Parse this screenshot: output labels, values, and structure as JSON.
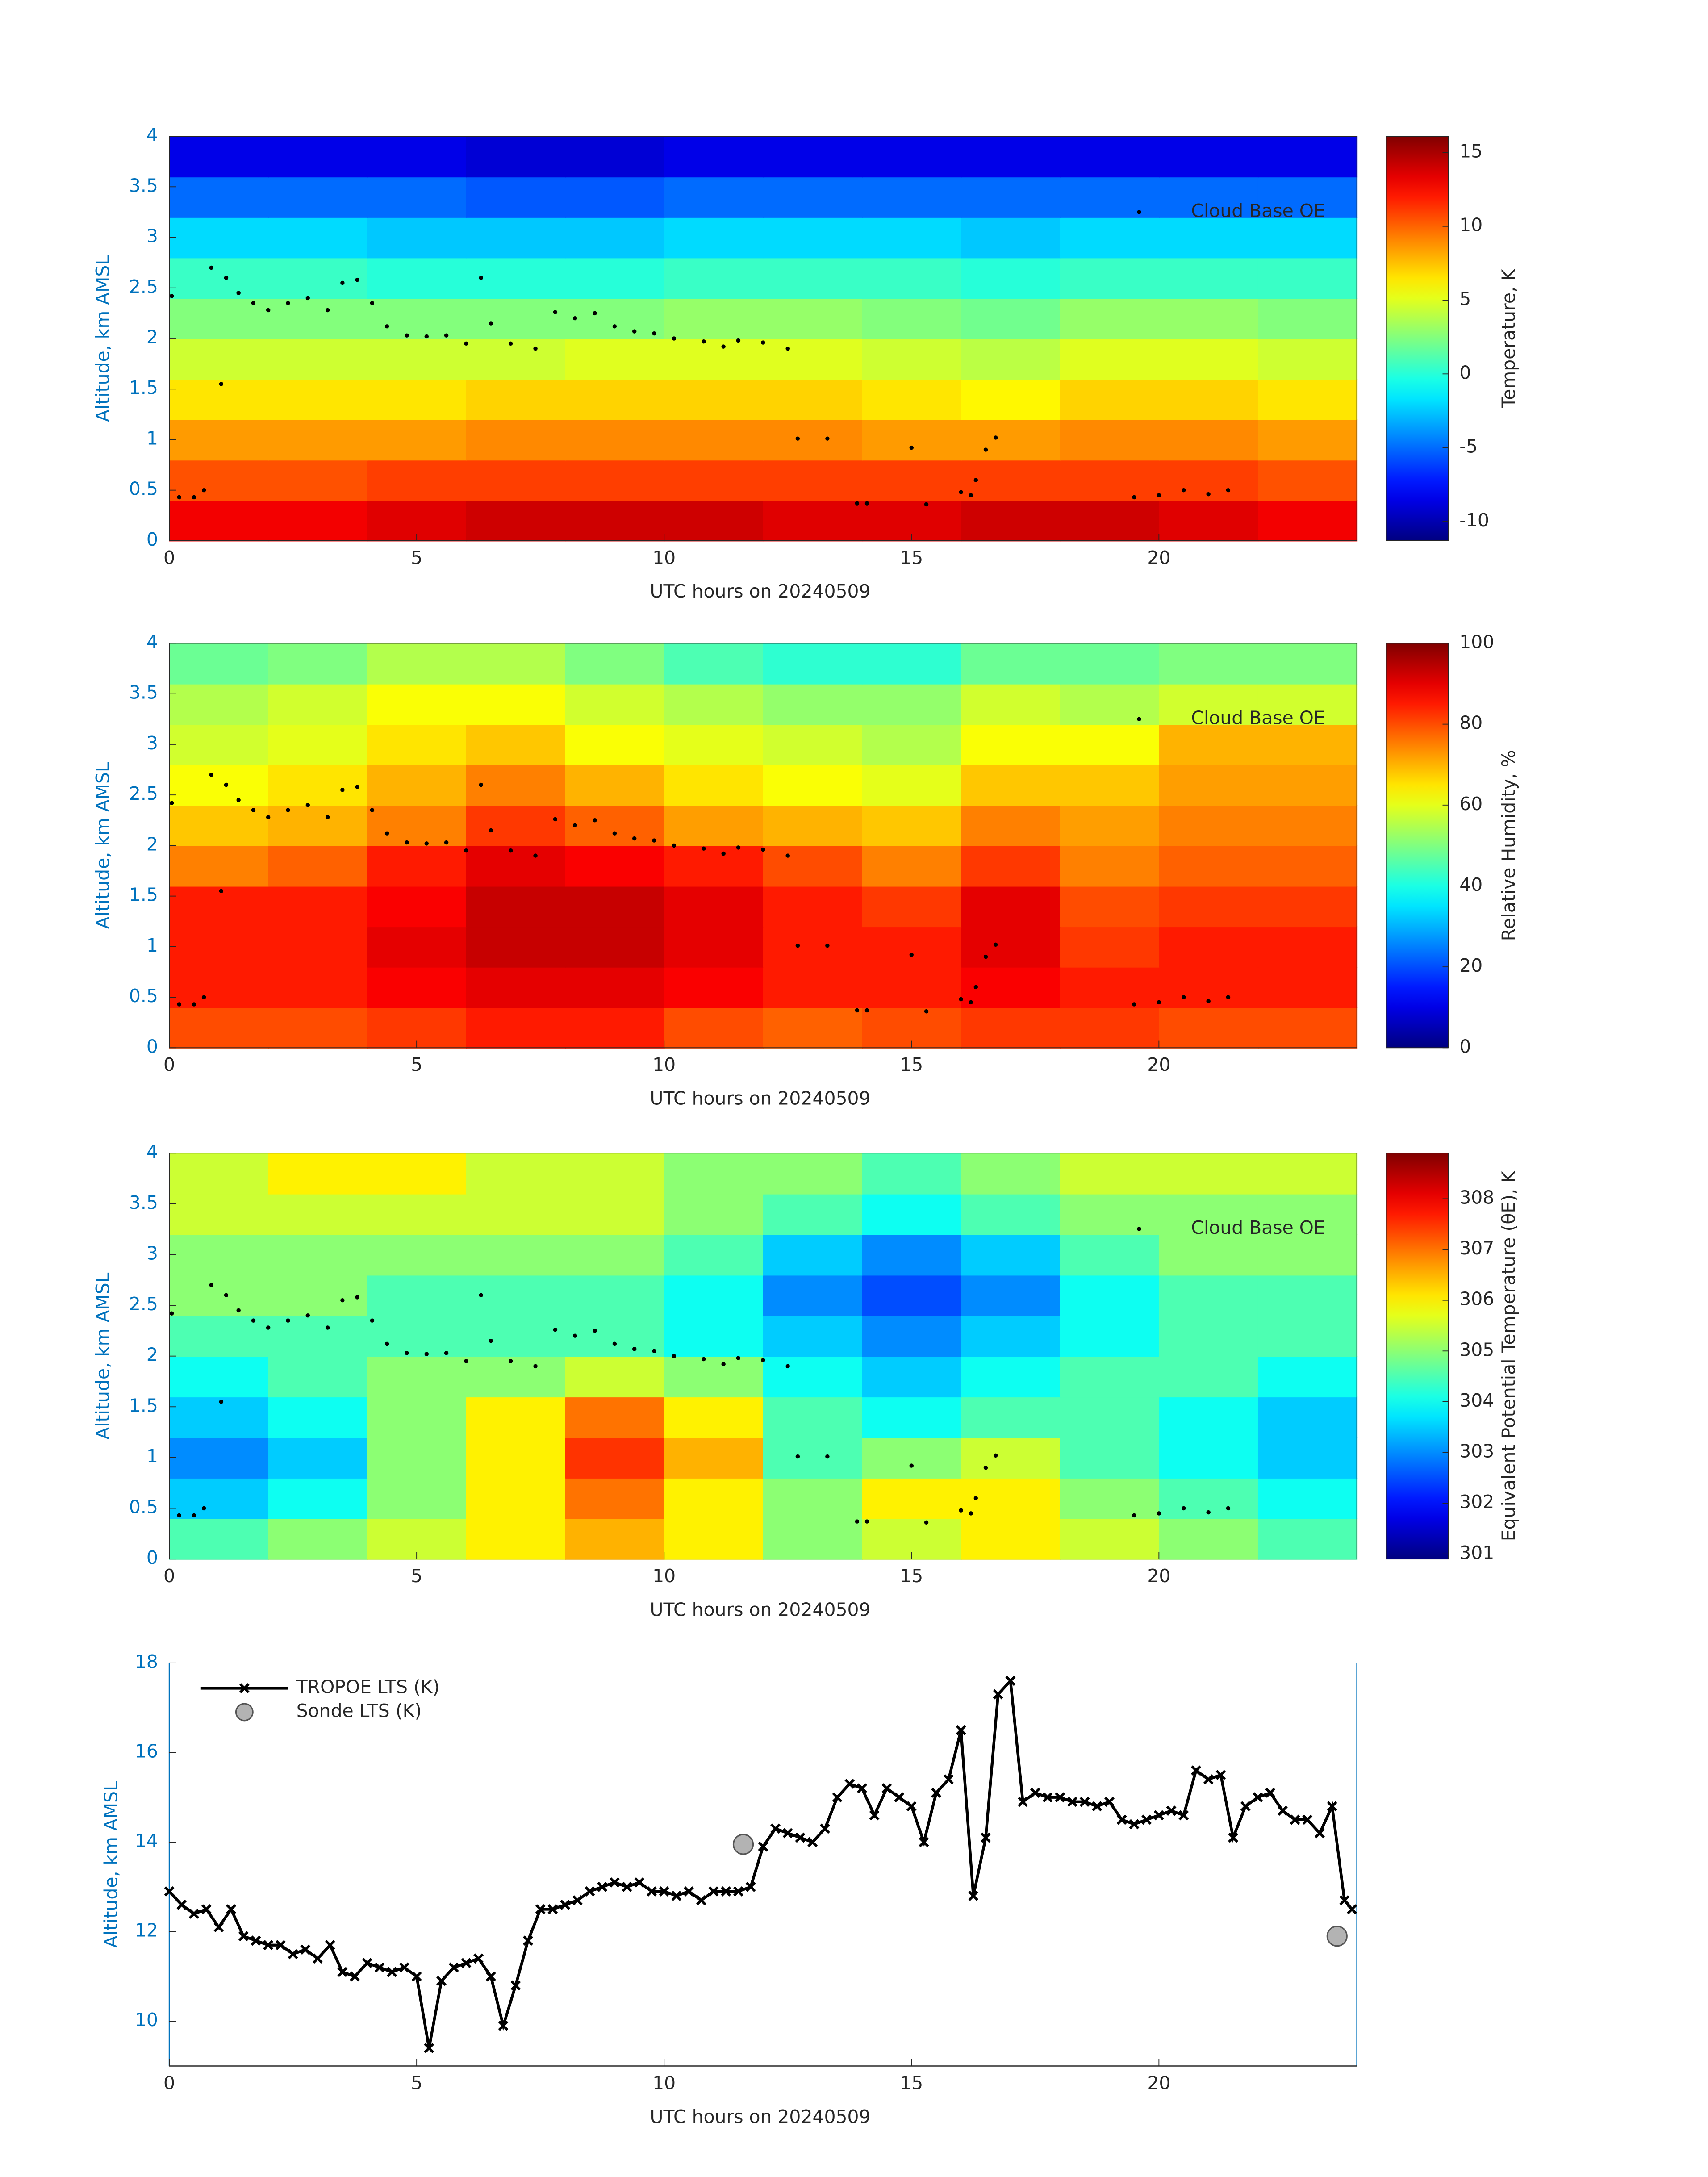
{
  "chart_data": [
    {
      "type": "heatmap",
      "xlabel": "UTC hours on 20240509",
      "ylabel": "Altitude, km AMSL",
      "xlim": [
        0,
        24
      ],
      "xticks": [
        0,
        5,
        10,
        15,
        20
      ],
      "ylim": [
        0,
        4
      ],
      "yticks": [
        0,
        0.5,
        1,
        1.5,
        2,
        2.5,
        3,
        3.5,
        4
      ],
      "colormap": "jet",
      "colorbar": {
        "label": "Temperature, K",
        "clim": [
          -11.3,
          16.1
        ],
        "ticks": [
          -10,
          -5,
          0,
          5,
          10,
          15
        ]
      },
      "x": [
        1,
        3,
        5,
        7,
        9,
        11,
        13,
        15,
        17,
        19,
        21,
        23
      ],
      "y": [
        0.2,
        0.6,
        1.0,
        1.4,
        1.8,
        2.2,
        2.6,
        3.0,
        3.4,
        3.8
      ],
      "z": [
        [
          13,
          13,
          13.5,
          14,
          14,
          14,
          13.5,
          13.5,
          14,
          14,
          13.5,
          13
        ],
        [
          10.5,
          10.5,
          11,
          11,
          11,
          11,
          11,
          11,
          11,
          11,
          11,
          10.5
        ],
        [
          8.5,
          8.5,
          8.5,
          9,
          9,
          9,
          9,
          8.5,
          8.5,
          9,
          9,
          8.5
        ],
        [
          6.5,
          6.5,
          6.5,
          7,
          7,
          7,
          7,
          6.5,
          6,
          7,
          7,
          6.5
        ],
        [
          4.5,
          4.5,
          4.5,
          4.5,
          5,
          5,
          5,
          4.5,
          4,
          5,
          5,
          4.5
        ],
        [
          2.5,
          2.5,
          2.5,
          2.5,
          2.5,
          3,
          3,
          2.5,
          2,
          3,
          3,
          2.5
        ],
        [
          0.5,
          0.5,
          0,
          0,
          0,
          0.5,
          0.5,
          0.5,
          0,
          0.5,
          0.5,
          0.5
        ],
        [
          -2,
          -2,
          -2.5,
          -2.5,
          -2.5,
          -2,
          -2,
          -2,
          -2.5,
          -2,
          -2,
          -2
        ],
        [
          -5,
          -5,
          -5,
          -5.5,
          -5.5,
          -5,
          -5,
          -5,
          -5,
          -5,
          -5,
          -5
        ],
        [
          -8.5,
          -8.5,
          -8.5,
          -9,
          -9,
          -8.5,
          -8.5,
          -8.5,
          -8.5,
          -8.5,
          -8.5,
          -8.5
        ]
      ],
      "legend": "upper right",
      "series": [
        {
          "name": "Cloud Base OE",
          "color": "#000000",
          "x": [
            0.05,
            0.2,
            0.5,
            0.7,
            0.85,
            1.05,
            1.15,
            1.4,
            1.7,
            2.0,
            2.4,
            2.8,
            3.2,
            3.5,
            3.8,
            4.1,
            4.4,
            4.8,
            5.2,
            5.6,
            6.0,
            6.3,
            6.5,
            6.9,
            7.4,
            7.8,
            8.2,
            8.6,
            9.0,
            9.4,
            9.8,
            10.2,
            10.8,
            11.2,
            11.5,
            12.0,
            12.5,
            12.7,
            13.3,
            13.9,
            14.1,
            15.0,
            15.3,
            16.0,
            16.2,
            16.3,
            16.5,
            16.7,
            19.5,
            20.0,
            20.5,
            21.0,
            21.4
          ],
          "values": [
            2.42,
            0.43,
            0.43,
            0.5,
            2.7,
            1.55,
            2.6,
            2.45,
            2.35,
            2.28,
            2.35,
            2.4,
            2.28,
            2.55,
            2.58,
            2.35,
            2.12,
            2.03,
            2.02,
            2.03,
            1.95,
            2.6,
            2.15,
            1.95,
            1.9,
            2.26,
            2.2,
            2.25,
            2.12,
            2.07,
            2.05,
            2.0,
            1.97,
            1.92,
            1.98,
            1.96,
            1.9,
            1.01,
            1.01,
            0.37,
            0.37,
            0.92,
            0.36,
            0.48,
            0.45,
            0.6,
            0.9,
            1.02,
            0.43,
            0.45,
            0.5,
            0.46,
            0.5
          ]
        }
      ]
    },
    {
      "type": "heatmap",
      "xlabel": "UTC hours on 20240509",
      "ylabel": "Altitude, km AMSL",
      "xlim": [
        0,
        24
      ],
      "xticks": [
        0,
        5,
        10,
        15,
        20
      ],
      "ylim": [
        0,
        4
      ],
      "yticks": [
        0,
        0.5,
        1,
        1.5,
        2,
        2.5,
        3,
        3.5,
        4
      ],
      "colormap": "jet",
      "colorbar": {
        "label": "Relative Humidity, %",
        "clim": [
          0,
          100
        ],
        "ticks": [
          0,
          20,
          40,
          60,
          80,
          100
        ]
      },
      "x": [
        1,
        3,
        5,
        7,
        9,
        11,
        13,
        15,
        17,
        19,
        21,
        23
      ],
      "y": [
        0.2,
        0.6,
        1.0,
        1.4,
        1.8,
        2.2,
        2.6,
        3.0,
        3.4,
        3.8
      ],
      "z": [
        [
          80,
          80,
          82,
          85,
          85,
          80,
          78,
          80,
          82,
          82,
          80,
          80
        ],
        [
          85,
          85,
          88,
          90,
          90,
          88,
          85,
          85,
          88,
          85,
          85,
          85
        ],
        [
          85,
          85,
          90,
          93,
          93,
          90,
          85,
          85,
          90,
          82,
          85,
          85
        ],
        [
          85,
          85,
          88,
          93,
          93,
          90,
          85,
          82,
          90,
          80,
          82,
          82
        ],
        [
          75,
          78,
          85,
          90,
          88,
          85,
          80,
          75,
          82,
          75,
          78,
          78
        ],
        [
          68,
          70,
          75,
          82,
          78,
          72,
          70,
          68,
          75,
          72,
          75,
          75
        ],
        [
          62,
          65,
          70,
          75,
          70,
          65,
          62,
          60,
          68,
          68,
          72,
          72
        ],
        [
          58,
          60,
          65,
          68,
          62,
          60,
          58,
          55,
          62,
          62,
          70,
          70
        ],
        [
          55,
          58,
          62,
          62,
          58,
          55,
          52,
          52,
          58,
          55,
          58,
          58
        ],
        [
          48,
          50,
          55,
          55,
          50,
          45,
          42,
          42,
          48,
          48,
          50,
          50
        ]
      ],
      "legend": "upper right",
      "series": [
        {
          "name": "Cloud Base OE",
          "color": "#000000",
          "x": [
            0.05,
            0.2,
            0.5,
            0.7,
            0.85,
            1.05,
            1.15,
            1.4,
            1.7,
            2.0,
            2.4,
            2.8,
            3.2,
            3.5,
            3.8,
            4.1,
            4.4,
            4.8,
            5.2,
            5.6,
            6.0,
            6.3,
            6.5,
            6.9,
            7.4,
            7.8,
            8.2,
            8.6,
            9.0,
            9.4,
            9.8,
            10.2,
            10.8,
            11.2,
            11.5,
            12.0,
            12.5,
            12.7,
            13.3,
            13.9,
            14.1,
            15.0,
            15.3,
            16.0,
            16.2,
            16.3,
            16.5,
            16.7,
            19.5,
            20.0,
            20.5,
            21.0,
            21.4
          ],
          "values": [
            2.42,
            0.43,
            0.43,
            0.5,
            2.7,
            1.55,
            2.6,
            2.45,
            2.35,
            2.28,
            2.35,
            2.4,
            2.28,
            2.55,
            2.58,
            2.35,
            2.12,
            2.03,
            2.02,
            2.03,
            1.95,
            2.6,
            2.15,
            1.95,
            1.9,
            2.26,
            2.2,
            2.25,
            2.12,
            2.07,
            2.05,
            2.0,
            1.97,
            1.92,
            1.98,
            1.96,
            1.9,
            1.01,
            1.01,
            0.37,
            0.37,
            0.92,
            0.36,
            0.48,
            0.45,
            0.6,
            0.9,
            1.02,
            0.43,
            0.45,
            0.5,
            0.46,
            0.5
          ]
        }
      ]
    },
    {
      "type": "heatmap",
      "xlabel": "UTC hours on 20240509",
      "ylabel": "Altitude, km AMSL",
      "xlim": [
        0,
        24
      ],
      "xticks": [
        0,
        5,
        10,
        15,
        20
      ],
      "ylim": [
        0,
        4
      ],
      "yticks": [
        0,
        0.5,
        1,
        1.5,
        2,
        2.5,
        3,
        3.5,
        4
      ],
      "colormap": "jet",
      "colorbar": {
        "label": "Equivalent Potential Temperature (θE), K",
        "clim": [
          300.9,
          308.9
        ],
        "ticks": [
          301,
          302,
          303,
          304,
          305,
          306,
          307,
          308
        ]
      },
      "x": [
        1,
        3,
        5,
        7,
        9,
        11,
        13,
        15,
        17,
        19,
        21,
        23
      ],
      "y": [
        0.2,
        0.6,
        1.0,
        1.4,
        1.8,
        2.2,
        2.6,
        3.0,
        3.4,
        3.8
      ],
      "z": [
        [
          304.5,
          305,
          305.5,
          306,
          306.5,
          306,
          305,
          305.5,
          306,
          305.5,
          305,
          304.5
        ],
        [
          303.5,
          304,
          305,
          306,
          307,
          306,
          305,
          306,
          306,
          305,
          304.5,
          304
        ],
        [
          303,
          303.5,
          305,
          306,
          307.5,
          306.5,
          304.5,
          305,
          305.5,
          304.5,
          304,
          303.5
        ],
        [
          303.5,
          304,
          305,
          306,
          307,
          306,
          304.5,
          304,
          304.5,
          304.5,
          304,
          303.5
        ],
        [
          304,
          304.5,
          305,
          305,
          305.5,
          305,
          304,
          303.5,
          304,
          304.5,
          304.5,
          304
        ],
        [
          304.5,
          304.5,
          304.5,
          304.5,
          304.5,
          304,
          303.5,
          303,
          303.5,
          304,
          304.5,
          304.5
        ],
        [
          305,
          305,
          304.5,
          304.5,
          304.5,
          304,
          303,
          302.5,
          303,
          304,
          304.5,
          304.5
        ],
        [
          305,
          305,
          305,
          305,
          305,
          304.5,
          303.5,
          303,
          303.5,
          304.5,
          305,
          305
        ],
        [
          305.5,
          305.5,
          305.5,
          305.5,
          305.5,
          305,
          304.5,
          304,
          304.5,
          305,
          305,
          305
        ],
        [
          305.5,
          306,
          306,
          305.5,
          305.5,
          305,
          305,
          304.5,
          305,
          305.5,
          305.5,
          305.5
        ]
      ],
      "legend": "upper right",
      "series": [
        {
          "name": "Cloud Base OE",
          "color": "#000000",
          "x": [
            0.05,
            0.2,
            0.5,
            0.7,
            0.85,
            1.05,
            1.15,
            1.4,
            1.7,
            2.0,
            2.4,
            2.8,
            3.2,
            3.5,
            3.8,
            4.1,
            4.4,
            4.8,
            5.2,
            5.6,
            6.0,
            6.3,
            6.5,
            6.9,
            7.4,
            7.8,
            8.2,
            8.6,
            9.0,
            9.4,
            9.8,
            10.2,
            10.8,
            11.2,
            11.5,
            12.0,
            12.5,
            12.7,
            13.3,
            13.9,
            14.1,
            15.0,
            15.3,
            16.0,
            16.2,
            16.3,
            16.5,
            16.7,
            19.5,
            20.0,
            20.5,
            21.0,
            21.4
          ],
          "values": [
            2.42,
            0.43,
            0.43,
            0.5,
            2.7,
            1.55,
            2.6,
            2.45,
            2.35,
            2.28,
            2.35,
            2.4,
            2.28,
            2.55,
            2.58,
            2.35,
            2.12,
            2.03,
            2.02,
            2.03,
            1.95,
            2.6,
            2.15,
            1.95,
            1.9,
            2.26,
            2.2,
            2.25,
            2.12,
            2.07,
            2.05,
            2.0,
            1.97,
            1.92,
            1.98,
            1.96,
            1.9,
            1.01,
            1.01,
            0.37,
            0.37,
            0.92,
            0.36,
            0.48,
            0.45,
            0.6,
            0.9,
            1.02,
            0.43,
            0.45,
            0.5,
            0.46,
            0.5
          ]
        }
      ]
    },
    {
      "type": "line",
      "xlabel": "UTC hours on 20240509",
      "ylabel": "Altitude, km AMSL",
      "xlim": [
        0,
        24
      ],
      "xticks": [
        0,
        5,
        10,
        15,
        20
      ],
      "ylim": [
        9,
        18
      ],
      "yticks": [
        10,
        12,
        14,
        16,
        18
      ],
      "legend": "upper left",
      "series": [
        {
          "name": "TROPOE LTS (K)",
          "color": "#000000",
          "marker": "x",
          "x": [
            0,
            0.25,
            0.5,
            0.75,
            1,
            1.25,
            1.5,
            1.75,
            2,
            2.25,
            2.5,
            2.75,
            3,
            3.25,
            3.5,
            3.75,
            4,
            4.25,
            4.5,
            4.75,
            5,
            5.25,
            5.5,
            5.75,
            6,
            6.25,
            6.5,
            6.75,
            7,
            7.25,
            7.5,
            7.75,
            8,
            8.25,
            8.5,
            8.75,
            9,
            9.25,
            9.5,
            9.75,
            10,
            10.25,
            10.5,
            10.75,
            11,
            11.25,
            11.5,
            11.75,
            12,
            12.25,
            12.5,
            12.75,
            13,
            13.25,
            13.5,
            13.75,
            14,
            14.25,
            14.5,
            14.75,
            15,
            15.25,
            15.5,
            15.75,
            16,
            16.25,
            16.5,
            16.75,
            17,
            17.25,
            17.5,
            17.75,
            18,
            18.25,
            18.5,
            18.75,
            19,
            19.25,
            19.5,
            19.75,
            20,
            20.25,
            20.5,
            20.75,
            21,
            21.25,
            21.5,
            21.75,
            22,
            22.25,
            22.5,
            22.75,
            23,
            23.25,
            23.5,
            23.75,
            23.9
          ],
          "values": [
            12.9,
            12.6,
            12.4,
            12.5,
            12.1,
            12.5,
            11.9,
            11.8,
            11.7,
            11.7,
            11.5,
            11.6,
            11.4,
            11.7,
            11.1,
            11.0,
            11.3,
            11.2,
            11.1,
            11.2,
            11.0,
            9.4,
            10.9,
            11.2,
            11.3,
            11.4,
            11.0,
            9.9,
            10.8,
            11.8,
            12.5,
            12.5,
            12.6,
            12.7,
            12.9,
            13.0,
            13.1,
            13.0,
            13.1,
            12.9,
            12.9,
            12.8,
            12.9,
            12.7,
            12.9,
            12.9,
            12.9,
            13.0,
            13.9,
            14.3,
            14.2,
            14.1,
            14.0,
            14.3,
            15.0,
            15.3,
            15.2,
            14.6,
            15.2,
            15.0,
            14.8,
            14.0,
            15.1,
            15.4,
            16.5,
            12.8,
            14.1,
            17.3,
            17.6,
            14.9,
            15.1,
            15.0,
            15.0,
            14.9,
            14.9,
            14.8,
            14.9,
            14.5,
            14.4,
            14.5,
            14.6,
            14.7,
            14.6,
            15.6,
            15.4,
            15.5,
            14.1,
            14.8,
            15.0,
            15.1,
            14.7,
            14.5,
            14.5,
            14.2,
            14.8,
            12.7,
            12.5
          ]
        },
        {
          "name": "Sonde LTS (K)",
          "color": "#b3b3b3",
          "marker": "o",
          "x": [
            11.6,
            23.6
          ],
          "values": [
            13.95,
            11.9
          ]
        }
      ]
    }
  ]
}
